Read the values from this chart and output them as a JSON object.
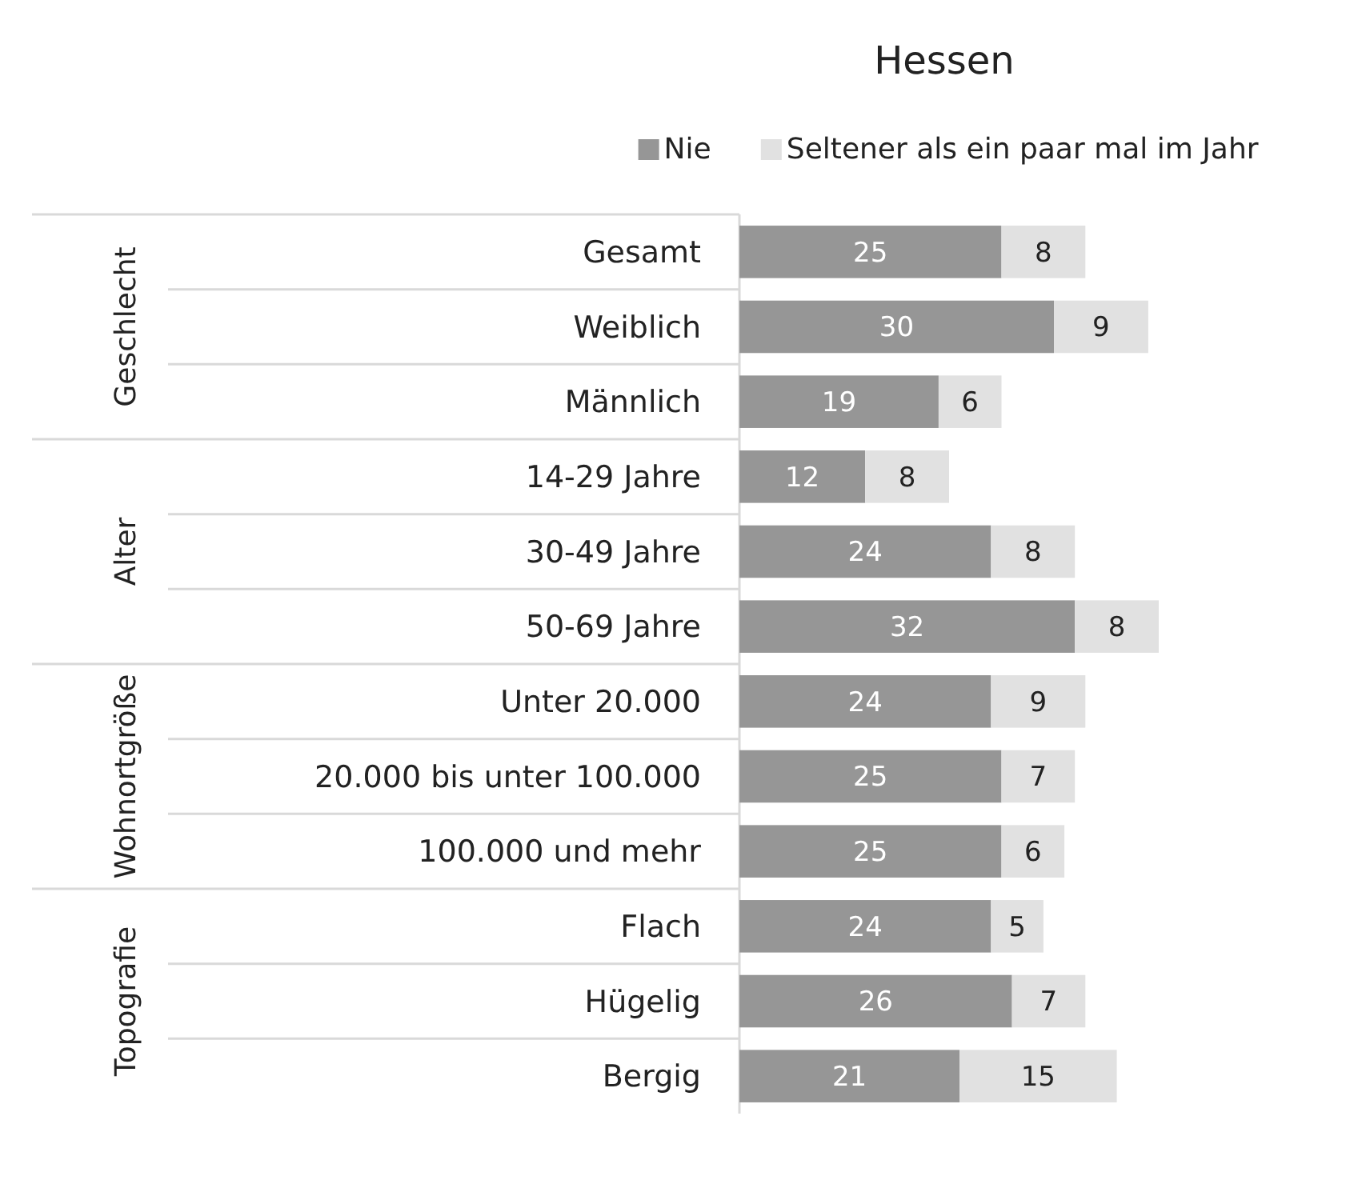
{
  "chart_data": {
    "type": "bar",
    "orientation": "horizontal",
    "stacked": true,
    "title": "Hessen",
    "categories": [
      "Gesamt",
      "Weiblich",
      "Männlich",
      "14-29 Jahre",
      "30-49 Jahre",
      "50-69 Jahre",
      "Unter 20.000",
      "20.000 bis unter 100.000",
      "100.000 und mehr",
      "Flach",
      "Hügelig",
      "Bergig"
    ],
    "series": [
      {
        "name": "Nie",
        "color": "#969696",
        "values": [
          25,
          30,
          19,
          12,
          24,
          32,
          24,
          25,
          25,
          24,
          26,
          21
        ]
      },
      {
        "name": "Seltener als ein paar mal im Jahr",
        "color": "#e1e1e1",
        "values": [
          8,
          9,
          6,
          8,
          8,
          8,
          9,
          7,
          6,
          5,
          7,
          15
        ]
      }
    ],
    "data_labels": true,
    "legend": "top right",
    "tick_labels": "y",
    "annotations": [
      "Geschlecht",
      "Alter",
      "Wohnortgröße",
      "Topografie"
    ]
  }
}
